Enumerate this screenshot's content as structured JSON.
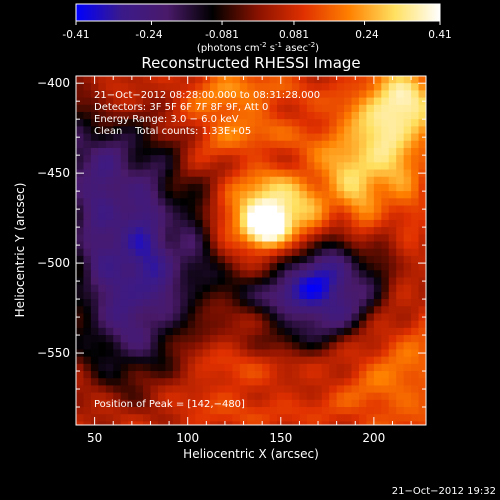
{
  "colorbar": {
    "ticks": [
      "-0.41",
      "-0.24",
      "-0.081",
      "0.081",
      "0.24",
      "0.41"
    ],
    "tick_values": [
      -0.41,
      -0.24,
      -0.081,
      0.081,
      0.24,
      0.41
    ],
    "units_pre": "(photons cm",
    "units_exp1": "-2",
    "units_mid1": " s",
    "units_exp2": "-1",
    "units_mid2": " asec",
    "units_exp3": "-2",
    "units_post": ")",
    "stops": [
      "#0000ff",
      "#3a1a8a",
      "#4a1a6a",
      "#000000",
      "#8a1200",
      "#e03000",
      "#ff8000",
      "#ffe060",
      "#ffffff"
    ]
  },
  "chart_data": {
    "type": "heatmap",
    "title": "Reconstructed RHESSI Image",
    "xlabel": "Heliocentric X (arcsec)",
    "ylabel": "Heliocentric Y (arcsec)",
    "xlim": [
      40,
      228
    ],
    "ylim": [
      -590,
      -396
    ],
    "x_ticks": [
      50,
      100,
      150,
      200
    ],
    "y_ticks": [
      -400,
      -450,
      -500,
      -550
    ],
    "x_tick_labels": [
      "50",
      "100",
      "150",
      "200"
    ],
    "y_tick_labels": [
      "−400",
      "−450",
      "−500",
      "−550"
    ],
    "peak": [
      142,
      -480
    ],
    "blobs": [
      {
        "x": 143,
        "y": -478,
        "amp": 0.55,
        "s": 14
      },
      {
        "x": 52,
        "y": -440,
        "amp": -0.28,
        "s": 32
      },
      {
        "x": 75,
        "y": -500,
        "amp": -0.32,
        "s": 28
      },
      {
        "x": 68,
        "y": -545,
        "amp": -0.18,
        "s": 22
      },
      {
        "x": 175,
        "y": -515,
        "amp": -0.33,
        "s": 22
      },
      {
        "x": 155,
        "y": -510,
        "amp": -0.15,
        "s": 25
      },
      {
        "x": 200,
        "y": -440,
        "amp": 0.22,
        "s": 20
      },
      {
        "x": 215,
        "y": -410,
        "amp": 0.25,
        "s": 14
      },
      {
        "x": 180,
        "y": -470,
        "amp": 0.12,
        "s": 18
      },
      {
        "x": 120,
        "y": -415,
        "amp": 0.15,
        "s": 22
      },
      {
        "x": 210,
        "y": -560,
        "amp": 0.12,
        "s": 25
      },
      {
        "x": 120,
        "y": -560,
        "amp": 0.06,
        "s": 25
      },
      {
        "x": 60,
        "y": -410,
        "amp": 0.14,
        "s": 15
      }
    ],
    "background_level": 0.07
  },
  "info": {
    "line1": "21−Oct−2012 08:28:00.000 to 08:31:28.000",
    "line2": "Detectors: 3F 5F 6F 7F 8F 9F, Att 0",
    "line3": "Energy Range: 3.0 − 6.0 keV",
    "line4": "Clean    Total counts: 1.33E+05",
    "peak_label": "Position of Peak = [142,−480]"
  },
  "timestamp": "21−Oct−2012 19:32"
}
